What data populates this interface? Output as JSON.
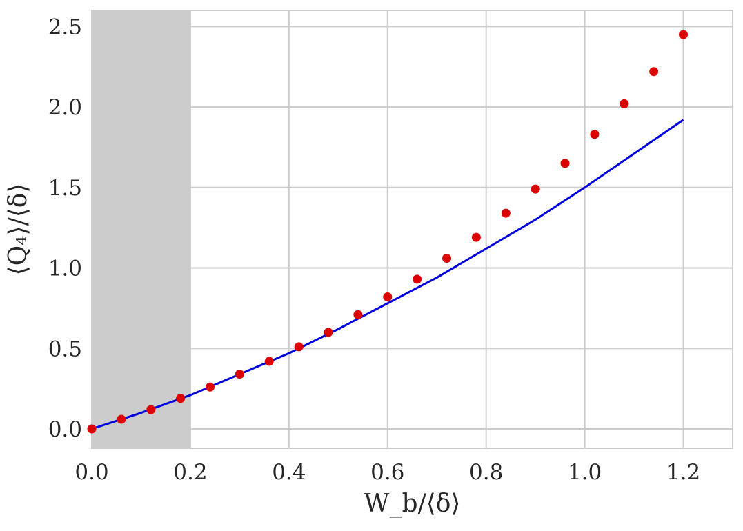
{
  "chart_data": {
    "type": "scatter",
    "title": "",
    "xlabel": "W_b/⟨δ⟩",
    "ylabel": "⟨Q₄⟩/⟨δ⟩",
    "xlim": [
      0.0,
      1.3
    ],
    "ylim": [
      -0.12,
      2.6
    ],
    "x_ticks": [
      "0.0",
      "0.2",
      "0.4",
      "0.6",
      "0.8",
      "1.0",
      "1.2"
    ],
    "y_ticks": [
      "0.0",
      "0.5",
      "1.0",
      "1.5",
      "2.0",
      "2.5"
    ],
    "grid": true,
    "shaded_region": {
      "x_from": 0.0,
      "x_to": 0.2,
      "color": "#cccccc"
    },
    "series": [
      {
        "kind": "points",
        "color": "#dd0000",
        "x": [
          0.0,
          0.06,
          0.12,
          0.18,
          0.24,
          0.3,
          0.36,
          0.42,
          0.48,
          0.54,
          0.6,
          0.66,
          0.72,
          0.78,
          0.84,
          0.9,
          0.96,
          1.02,
          1.08,
          1.14,
          1.2
        ],
        "y": [
          0.0,
          0.06,
          0.12,
          0.19,
          0.26,
          0.34,
          0.42,
          0.51,
          0.6,
          0.71,
          0.82,
          0.93,
          1.06,
          1.19,
          1.34,
          1.49,
          1.65,
          1.83,
          2.02,
          2.22,
          2.45
        ]
      },
      {
        "kind": "line",
        "color": "#0000dd",
        "x": [
          0.0,
          0.1,
          0.2,
          0.3,
          0.4,
          0.5,
          0.6,
          0.7,
          0.8,
          0.9,
          1.0,
          1.1,
          1.2
        ],
        "y": [
          0.0,
          0.1,
          0.21,
          0.34,
          0.47,
          0.62,
          0.78,
          0.94,
          1.12,
          1.3,
          1.5,
          1.71,
          1.92
        ]
      }
    ]
  }
}
